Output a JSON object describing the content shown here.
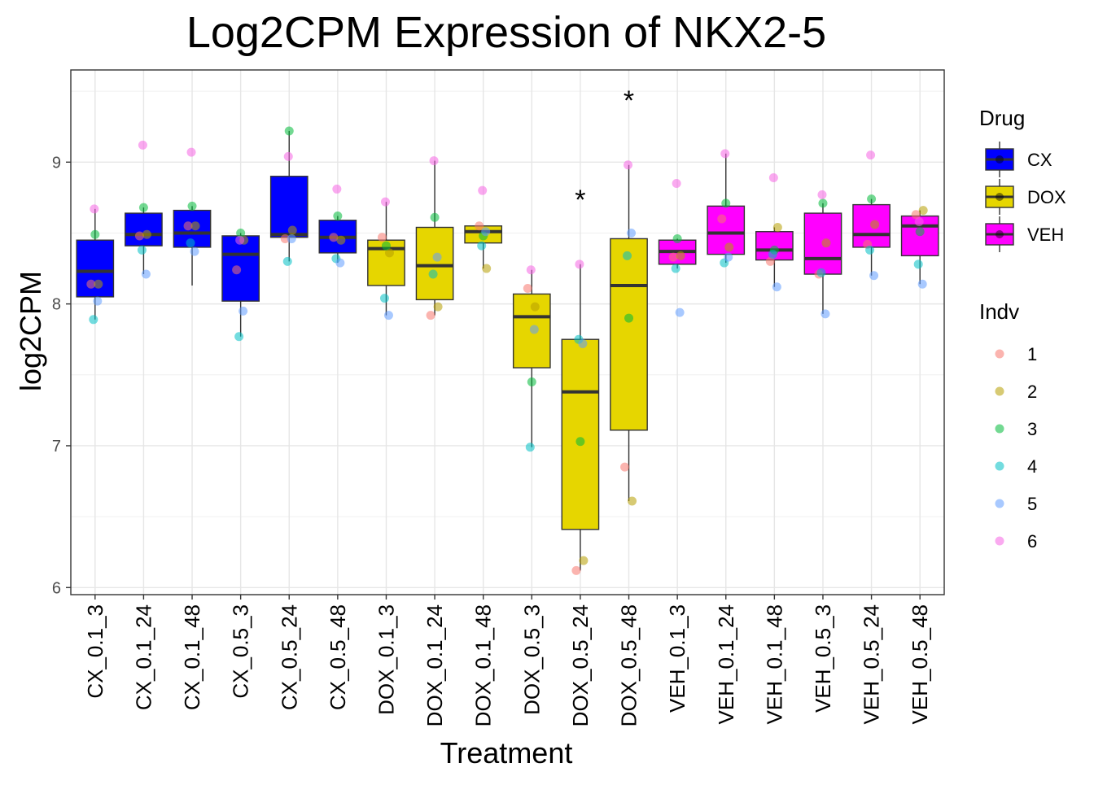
{
  "chart_data": {
    "type": "box",
    "title": "Log2CPM Expression of NKX2-5",
    "xlabel": "Treatment",
    "ylabel": "log2CPM",
    "ylim": [
      5.95,
      9.65
    ],
    "yticks": [
      6,
      7,
      8,
      9
    ],
    "grid": true,
    "colors": {
      "drug": {
        "CX": "#0000FF",
        "DOX": "#E6D600",
        "VEH": "#FF00FF"
      },
      "indv": {
        "1": "#F8766D",
        "2": "#B79F00",
        "3": "#00BA38",
        "4": "#00BFC4",
        "5": "#619CFF",
        "6": "#F564E3"
      }
    },
    "legends": [
      {
        "title": "Drug",
        "items": [
          "CX",
          "DOX",
          "VEH"
        ]
      },
      {
        "title": "Indv",
        "items": [
          "1",
          "2",
          "3",
          "4",
          "5",
          "6"
        ]
      }
    ],
    "categories": [
      "CX_0.1_3",
      "CX_0.1_24",
      "CX_0.1_48",
      "CX_0.5_3",
      "CX_0.5_24",
      "CX_0.5_48",
      "DOX_0.1_3",
      "DOX_0.1_24",
      "DOX_0.1_48",
      "DOX_0.5_3",
      "DOX_0.5_24",
      "DOX_0.5_48",
      "VEH_0.1_3",
      "VEH_0.1_24",
      "VEH_0.1_48",
      "VEH_0.5_3",
      "VEH_0.5_24",
      "VEH_0.5_48"
    ],
    "boxes": [
      {
        "drug": "CX",
        "q1": 8.05,
        "median": 8.23,
        "q3": 8.45,
        "whisker_low": 7.89,
        "whisker_high": 8.67,
        "points": {
          "1": 8.14,
          "2": 8.14,
          "3": 8.49,
          "4": 7.89,
          "5": 8.02,
          "6": 8.67
        }
      },
      {
        "drug": "CX",
        "q1": 8.41,
        "median": 8.49,
        "q3": 8.64,
        "whisker_low": 8.21,
        "whisker_high": 8.68,
        "points": {
          "1": 8.48,
          "2": 8.49,
          "3": 8.68,
          "4": 8.38,
          "5": 8.21,
          "6": 9.12
        }
      },
      {
        "drug": "CX",
        "q1": 8.4,
        "median": 8.5,
        "q3": 8.66,
        "whisker_low": 8.13,
        "whisker_high": 8.69,
        "points": {
          "1": 8.55,
          "2": 8.55,
          "3": 8.69,
          "4": 8.43,
          "5": 8.37,
          "6": 9.07
        }
      },
      {
        "drug": "CX",
        "q1": 8.02,
        "median": 8.35,
        "q3": 8.48,
        "whisker_low": 7.77,
        "whisker_high": 8.5,
        "points": {
          "1": 8.24,
          "2": 8.45,
          "3": 8.5,
          "4": 7.77,
          "5": 7.95,
          "6": 8.45
        }
      },
      {
        "drug": "CX",
        "q1": 8.47,
        "median": 8.49,
        "q3": 8.9,
        "whisker_low": 8.3,
        "whisker_high": 9.22,
        "points": {
          "1": 8.46,
          "2": 8.52,
          "3": 9.22,
          "4": 8.3,
          "5": 8.46,
          "6": 9.04
        }
      },
      {
        "drug": "CX",
        "q1": 8.36,
        "median": 8.47,
        "q3": 8.59,
        "whisker_low": 8.29,
        "whisker_high": 8.62,
        "points": {
          "1": 8.47,
          "2": 8.45,
          "3": 8.62,
          "4": 8.32,
          "5": 8.29,
          "6": 8.81
        }
      },
      {
        "drug": "DOX",
        "q1": 8.13,
        "median": 8.39,
        "q3": 8.45,
        "whisker_low": 7.92,
        "whisker_high": 8.72,
        "points": {
          "1": 8.47,
          "2": 8.36,
          "3": 8.41,
          "4": 8.04,
          "5": 7.92,
          "6": 8.72
        }
      },
      {
        "drug": "DOX",
        "q1": 8.03,
        "median": 8.27,
        "q3": 8.54,
        "whisker_low": 7.92,
        "whisker_high": 9.01,
        "points": {
          "1": 7.92,
          "2": 7.98,
          "3": 8.61,
          "4": 8.21,
          "5": 8.33,
          "6": 9.01
        }
      },
      {
        "drug": "DOX",
        "q1": 8.43,
        "median": 8.51,
        "q3": 8.55,
        "whisker_low": 8.25,
        "whisker_high": 8.55,
        "points": {
          "1": 8.55,
          "2": 8.25,
          "3": 8.48,
          "4": 8.41,
          "5": 8.51,
          "6": 8.8
        }
      },
      {
        "drug": "DOX",
        "q1": 7.55,
        "median": 7.91,
        "q3": 8.07,
        "whisker_low": 6.99,
        "whisker_high": 8.24,
        "points": {
          "1": 8.11,
          "2": 7.98,
          "3": 7.45,
          "4": 6.99,
          "5": 7.82,
          "6": 8.24
        }
      },
      {
        "drug": "DOX",
        "q1": 6.41,
        "median": 7.38,
        "q3": 7.75,
        "whisker_low": 6.12,
        "whisker_high": 8.28,
        "points": {
          "1": 6.12,
          "2": 6.19,
          "3": 7.03,
          "4": 7.75,
          "5": 7.72,
          "6": 8.28
        }
      },
      {
        "drug": "DOX",
        "q1": 7.11,
        "median": 8.13,
        "q3": 8.46,
        "whisker_low": 6.61,
        "whisker_high": 8.98,
        "points": {
          "1": 6.85,
          "2": 6.61,
          "3": 7.9,
          "4": 8.34,
          "5": 8.5,
          "6": 8.98
        }
      },
      {
        "drug": "VEH",
        "q1": 8.28,
        "median": 8.37,
        "q3": 8.45,
        "whisker_low": 8.25,
        "whisker_high": 8.46,
        "points": {
          "1": 8.33,
          "2": 8.34,
          "3": 8.46,
          "4": 8.25,
          "5": 7.94,
          "6": 8.85
        }
      },
      {
        "drug": "VEH",
        "q1": 8.35,
        "median": 8.5,
        "q3": 8.69,
        "whisker_low": 8.29,
        "whisker_high": 9.06,
        "points": {
          "1": 8.6,
          "2": 8.4,
          "3": 8.71,
          "4": 8.29,
          "5": 8.33,
          "6": 9.06
        }
      },
      {
        "drug": "VEH",
        "q1": 8.31,
        "median": 8.38,
        "q3": 8.51,
        "whisker_low": 8.12,
        "whisker_high": 8.54,
        "points": {
          "1": 8.3,
          "2": 8.54,
          "3": 8.38,
          "4": 8.35,
          "5": 8.12,
          "6": 8.89
        }
      },
      {
        "drug": "VEH",
        "q1": 8.21,
        "median": 8.32,
        "q3": 8.64,
        "whisker_low": 7.93,
        "whisker_high": 8.71,
        "points": {
          "1": 8.21,
          "2": 8.43,
          "3": 8.71,
          "4": 8.22,
          "5": 7.93,
          "6": 8.77
        }
      },
      {
        "drug": "VEH",
        "q1": 8.4,
        "median": 8.49,
        "q3": 8.7,
        "whisker_low": 8.2,
        "whisker_high": 8.74,
        "points": {
          "1": 8.42,
          "2": 8.56,
          "3": 8.74,
          "4": 8.38,
          "5": 8.2,
          "6": 9.05
        }
      },
      {
        "drug": "VEH",
        "q1": 8.34,
        "median": 8.55,
        "q3": 8.62,
        "whisker_low": 8.14,
        "whisker_high": 8.66,
        "points": {
          "1": 8.63,
          "2": 8.66,
          "3": 8.51,
          "4": 8.28,
          "5": 8.14,
          "6": 8.58
        }
      }
    ],
    "annotations": [
      {
        "text": "*",
        "category": "DOX_0.5_24",
        "y": 8.75
      },
      {
        "text": "*",
        "category": "DOX_0.5_48",
        "y": 9.45
      }
    ]
  }
}
